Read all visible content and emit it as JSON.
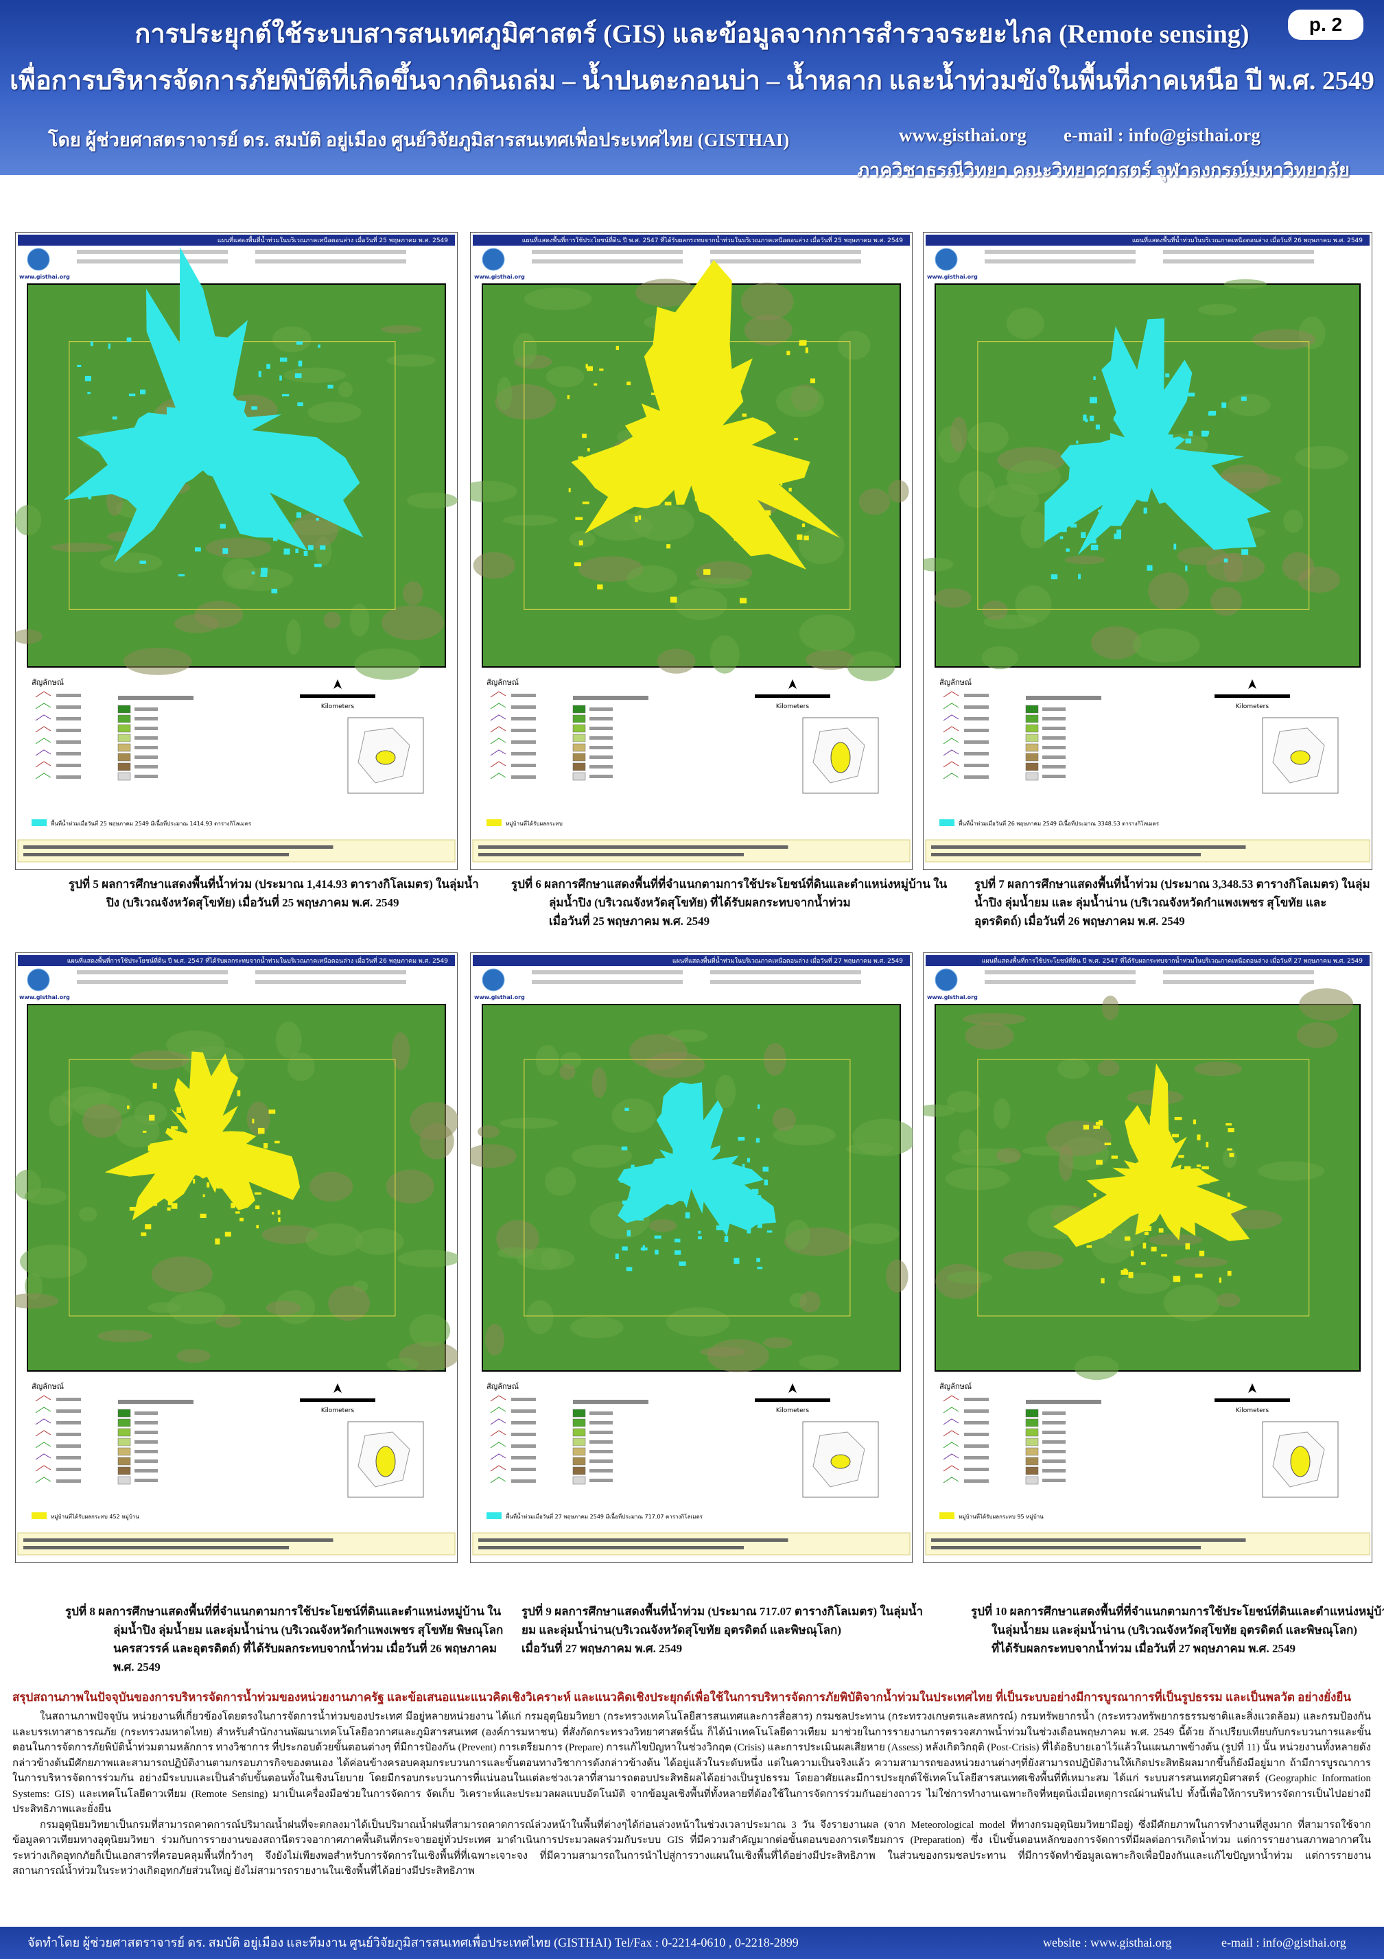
{
  "header": {
    "page": "p. 2",
    "title_line1": "การประยุกต์ใช้ระบบสารสนเทศภูมิศาสตร์ (GIS) และข้อมูลจากการสำรวจระยะไกล (Remote sensing)",
    "title_line2": "เพื่อการบริหารจัดการภัยพิบัติที่เกิดขึ้นจากดินถล่ม – น้ำปนตะกอนบ่า – น้ำหลาก และน้ำท่วมขังในพื้นที่ภาคเหนือ ปี พ.ศ. 2549",
    "author": "โดย ผู้ช่วยศาสตราจารย์ ดร. สมบัติ  อยู่เมือง ศูนย์วิจัยภูมิสารสนเทศเพื่อประเทศไทย (GISTHAI)",
    "website": "www.gisthai.org",
    "email": "e-mail : info@gisthai.org",
    "department": "ภาควิชาธรณีวิทยา คณะวิทยาศาสตร์ จุฬาลงกรณ์มหาวิทยาลัย"
  },
  "figures": [
    {
      "map_title": "แผนที่แสดงพื้นที่น้ำท่วมในบริเวณภาคเหนือตอนล่าง เมื่อวันที่ 25 พฤษภาคม พ.ศ. 2549",
      "logo_text": "www.gisthai.org",
      "legend_heading": "สัญลักษณ์",
      "scale_label": "Kilometers",
      "note": "พื้นที่น้ำท่วมเมื่อวันที่ 25 พฤษภาคม 2549 มีเนื้อที่ประมาณ 1414.93 ตารางกิโลเมตร",
      "flood_color": "#35e8e8",
      "caption": [
        "รูปที่ 5  ผลการศึกษาแสดงพื้นที่น้ำท่วม (ประมาณ 1,414.93 ตารางกิโลเมตร) ในลุ่มน้ำ",
        "ปิง (บริเวณจังหวัดสุโขทัย)  เมื่อวันที่ 25 พฤษภาคม พ.ศ. 2549"
      ]
    },
    {
      "map_title": "แผนที่แสดงพื้นที่การใช้ประโยชน์ที่ดิน ปี พ.ศ. 2547 ที่ได้รับผลกระทบจากน้ำท่วมในบริเวณภาคเหนือตอนล่าง เมื่อวันที่ 25 พฤษภาคม พ.ศ. 2549",
      "logo_text": "www.gisthai.org",
      "legend_heading": "สัญลักษณ์",
      "scale_label": "Kilometers",
      "note": "หมู่บ้านที่ได้รับผลกระทบ",
      "flood_color": "#f4ee14",
      "caption": [
        "รูปที่ 6   ผลการศึกษาแสดงพื้นที่ที่จำแนกตามการใช้ประโยชน์ที่ดินและตำแหน่งหมู่บ้าน ใน",
        "ลุ่มน้ำปิง (บริเวณจังหวัดสุโขทัย)  ที่ได้รับผลกระทบจากน้ำท่วม",
        "เมื่อวันที่ 25 พฤษภาคม พ.ศ. 2549"
      ]
    },
    {
      "map_title": "แผนที่แสดงพื้นที่น้ำท่วมในบริเวณภาคเหนือตอนล่าง เมื่อวันที่ 26 พฤษภาคม พ.ศ. 2549",
      "logo_text": "www.gisthai.org",
      "legend_heading": "สัญลักษณ์",
      "scale_label": "Kilometers",
      "note": "พื้นที่น้ำท่วมเมื่อวันที่ 26 พฤษภาคม 2549 มีเนื้อที่ประมาณ 3348.53 ตารางกิโลเมตร",
      "flood_color": "#35e8e8",
      "caption": [
        "รูปที่ 7   ผลการศึกษาแสดงพื้นที่น้ำท่วม (ประมาณ 3,348.53  ตารางกิโลเมตร) ในลุ่ม",
        "น้ำปิง ลุ่มน้ำยม และ ลุ่มน้ำน่าน (บริเวณจังหวัดกำแพงเพชร สุโขทัย และ",
        "อุตรดิตถ์) เมื่อวันที่ 26 พฤษภาคม พ.ศ. 2549"
      ]
    },
    {
      "map_title": "แผนที่แสดงพื้นที่การใช้ประโยชน์ที่ดิน ปี พ.ศ. 2547 ที่ได้รับผลกระทบจากน้ำท่วมในบริเวณภาคเหนือตอนล่าง เมื่อวันที่ 26 พฤษภาคม พ.ศ. 2549",
      "logo_text": "www.gisthai.org",
      "legend_heading": "สัญลักษณ์",
      "scale_label": "Kilometers",
      "note": "หมู่บ้านที่ได้รับผลกระทบ 452 หมู่บ้าน",
      "flood_color": "#f4ee14",
      "caption": [
        "รูปที่ 8   ผลการศึกษาแสดงพื้นที่ที่จำแนกตามการใช้ประโยชน์ที่ดินและตำแหน่งหมู่บ้าน ใน",
        "ลุ่มน้ำปิง ลุ่มน้ำยม และลุ่มน้ำน่าน (บริเวณจังหวัดกำแพงเพชร สุโขทัย พิษณุโลก",
        "นครสวรรค์ และอุตรดิตถ์) ที่ได้รับผลกระทบจากน้ำท่วม เมื่อวันที่ 26 พฤษภาคม",
        "พ.ศ. 2549"
      ]
    },
    {
      "map_title": "แผนที่แสดงพื้นที่น้ำท่วมในบริเวณภาคเหนือตอนล่าง เมื่อวันที่ 27 พฤษภาคม พ.ศ. 2549",
      "logo_text": "www.gisthai.org",
      "legend_heading": "สัญลักษณ์",
      "scale_label": "Kilometers",
      "note": "พื้นที่น้ำท่วมเมื่อวันที่ 27 พฤษภาคม 2549 มีเนื้อที่ประมาณ 717.07 ตารางกิโลเมตร",
      "flood_color": "#35e8e8",
      "caption": [
        "รูปที่ 9  ผลการศึกษาแสดงพื้นที่น้ำท่วม (ประมาณ 717.07 ตารางกิโลเมตร) ในลุ่มน้ำ",
        "ยม และลุ่มน้ำน่าน(บริเวณจังหวัดสุโขทัย อุตรดิตถ์ และพิษณุโลก)",
        "เมื่อวันที่ 27 พฤษภาคม พ.ศ.  2549"
      ]
    },
    {
      "map_title": "แผนที่แสดงพื้นที่การใช้ประโยชน์ที่ดิน ปี พ.ศ. 2547 ที่ได้รับผลกระทบจากน้ำท่วมในบริเวณภาคเหนือตอนล่าง เมื่อวันที่ 27 พฤษภาคม พ.ศ. 2549",
      "logo_text": "www.gisthai.org",
      "legend_heading": "สัญลักษณ์",
      "scale_label": "Kilometers",
      "note": "หมู่บ้านที่ได้รับผลกระทบ 95 หมู่บ้าน",
      "flood_color": "#f4ee14",
      "caption": [
        "รูปที่ 10   ผลการศึกษาแสดงพื้นที่ที่จำแนกตามการใช้ประโยชน์ที่ดินและตำแหน่งหมู่บ้าน",
        "ในลุ่มน้ำยม และลุ่มน้ำน่าน (บริเวณจังหวัดสุโขทัย อุตรดิตถ์ และพิษณุโลก)",
        "ที่ได้รับผลกระทบจากน้ำท่วม เมื่อวันที่ 27 พฤษภาคม พ.ศ. 2549"
      ]
    }
  ],
  "conclusion": {
    "heading": "สรุปสถานภาพในปัจจุบันของการบริหารจัดการน้ำท่วมของหน่วยงานภาครัฐ  และข้อเสนอแนะแนวคิดเชิงวิเคราะห์ และแนวคิดเชิงประยุกต์เพื่อใช้ในการบริหารจัดการภัยพิบัติจากน้ำท่วมในประเทศไทย ที่เป็นระบบอย่างมีการบูรณาการที่เป็นรูปธรรม และเป็นพลวัต อย่างยั่งยืน",
    "paragraphs": [
      "ในสถานภาพปัจจุบัน หน่วยงานที่เกี่ยวข้องโดยตรงในการจัดการน้ำท่วมของประเทศ มีอยู่หลายหน่วยงาน ได้แก่ กรมอุตุนิยมวิทยา (กระทรวงเทคโนโลยีสารสนเทศและการสื่อสาร)  กรมชลประทาน (กระทรวงเกษตรและสหกรณ์) กรมทรัพยากรน้ำ (กระทรวงทรัพยากรธรรมชาติและสิ่งแวดล้อม) และกรมป้องกันและบรรเทาสาธารณภัย (กระทรวงมหาดไทย) สำหรับสำนักงานพัฒนาเทคโนโลยีอวกาศและภูมิสารสนเทศ (องค์การมหาชน) ที่สังกัดกระทรวงวิทยาศาสตร์นั้น ก็ได้นำเทคโนโลยีดาวเทียม มาช่วยในการรายงานการตรวจสภาพน้ำท่วมในช่วงเดือนพฤษภาคม พ.ศ. 2549  นี้ด้วย ถ้าเปรียบเทียบกับกระบวนการและขั้นตอนในการจัดการภัยพิบัติน้ำท่วมตามหลักการ ทางวิชาการ ที่ประกอบด้วยขั้นตอนต่างๆ ที่มีการป้องกัน (Prevent) การเตรียมการ (Prepare) การแก้ไขปัญหาในช่วงวิกฤต (Crisis) และการประเมินผลเสียหาย (Assess) หลังเกิดวิกฤติ (Post-Crisis) ที่ได้อธิบายเอาไว้แล้วในแผนภาพข้างต้น (รูปที่ 11) นั้น หน่วยงานทั้งหลายดังกล่าวข้างต้นมีศักยภาพและสามารถปฏิบัติงานตามกรอบภารกิจของตนเอง ได้ค่อนข้างครอบคลุมกระบวนการและขั้นตอนทางวิชาการดังกล่าวข้างต้น ได้อยู่แล้วในระดับหนึ่ง แต่ในความเป็นจริงแล้ว ความสามารถของหน่วยงานต่างๆที่ยังสามารถปฏิบัติงานให้เกิดประสิทธิผลมากขึ้นก็ยังมีอยู่มาก ถ้ามีการบูรณาการในการบริหารจัดการร่วมกัน อย่างมีระบบและเป็นลำดับขั้นตอนทั้งในเชิงนโยบาย โดยมีกรอบกระบวนการที่แน่นอนในแต่ละช่วงเวลาที่สามารถตอบประสิทธิผลได้อย่างเป็นรูปธรรม โดยอาศัยและมีการประยุกต์ใช้เทคโนโลยีสารสนเทศเชิงพื้นที่ที่เหมาะสม ได้แก่ ระบบสารสนเทศภูมิศาสตร์ (Geographic Information Systems: GIS) และเทคโนโลยีดาวเทียม (Remote Sensing) มาเป็นเครื่องมือช่วยในการจัดการ จัดเก็บ วิเคราะห์และประมวลผลแบบอัตโนมัติ จากข้อมูลเชิงพื้นที่ทั้งหลายที่ต้องใช้ในการจัดการร่วมกันอย่างถาวร ไม่ใช่การทำงานเฉพาะกิจที่หยุดนิ่งเมื่อเหตุการณ์ผ่านพ้นไป ทั้งนี้เพื่อให้การบริหารจัดการเป็นไปอย่างมีประสิทธิภาพและยั่งยืน",
      "กรมอุตุนิยมวิทยาเป็นกรมที่สามารถคาดการณ์ปริมาณน้ำฝนที่จะตกลงมาได้เป็นปริมาณน้ำฝนที่สามารถคาดการณ์ล่วงหน้าในพื้นที่ต่างๆได้ก่อนล่วงหน้าในช่วงเวลาประมาณ 3 วัน จึงรายงานผล (จาก Meteorological model ที่ทางกรมอุตุนิยมวิทยามีอยู่) ซึ่งมีศักยภาพในการทำงานที่สูงมาก ที่สามารถใช้จากข้อมูลดาวเทียมทางอุตุนิยมวิทยา ร่วมกับการรายงานของสถานีตรวจอากาศภาคพื้นดินที่กระจายอยู่ทั่วประเทศ มาดำเนินการประมวลผลร่วมกับระบบ GIS ที่มีความสำคัญมากต่อขั้นตอนของการเตรียมการ (Preparation) ซึ่ง เป็นขั้นตอนหลักของการจัดการที่มีผลต่อการเกิดน้ำท่วม แต่การรายงานสภาพอากาศในระหว่างเกิดอุทกภัยก็เป็นเอกสารที่ครอบคลุมพื้นที่กว้างๆ จึงยังไม่เพียงพอสำหรับการจัดการในเชิงพื้นที่ที่เฉพาะเจาะจง ที่มีความสามารถในการนำไปสู่การวางแผนในเชิงพื้นที่ได้อย่างมีประสิทธิภาพ ในส่วนของกรมชลประทาน ที่มีการจัดทำข้อมูลเฉพาะกิจเพื่อป้องกันและแก้ไขปัญหาน้ำท่วม แต่การรายงานสถานการณ์น้ำท่วมในระหว่างเกิดอุทกภัยส่วนใหญ่ ยังไม่สามารถรายงานในเชิงพื้นที่ได้อย่างมีประสิทธิภาพ"
    ]
  },
  "footer": {
    "credit": "จัดทำโดย ผู้ช่วยศาสตราจารย์ ดร. สมบัติ  อยู่เมือง และทีมงาน ศูนย์วิจัยภูมิสารสนเทศเพื่อประเทศไทย (GISTHAI)   Tel/Fax : 0-2214-0610 , 0-2218-2899",
    "website": "website :  www.gisthai.org",
    "email": "e-mail : info@gisthai.org"
  }
}
